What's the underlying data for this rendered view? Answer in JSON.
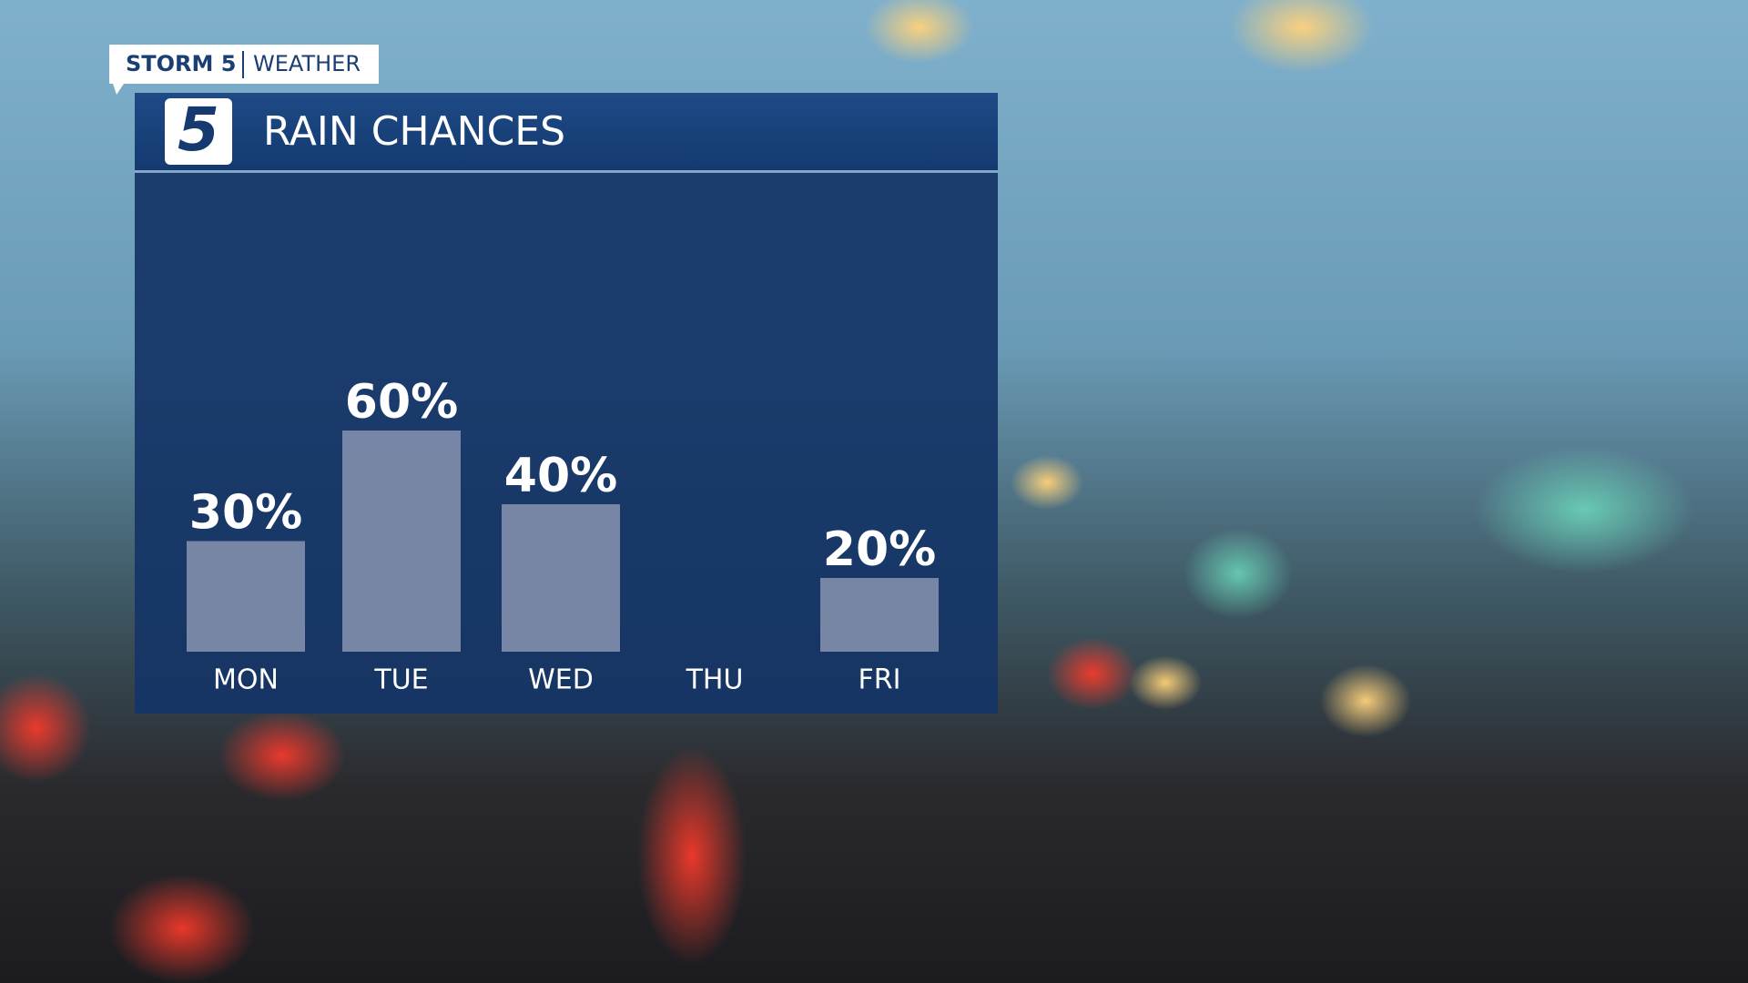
{
  "header": {
    "brand": "STORM 5",
    "section": "WEATHER",
    "logo": "5"
  },
  "chart_data": {
    "type": "bar",
    "title": "RAIN CHANCES",
    "categories": [
      "MON",
      "TUE",
      "WED",
      "THU",
      "FRI"
    ],
    "values": [
      30,
      60,
      40,
      null,
      20
    ],
    "value_labels": [
      "30%",
      "60%",
      "40%",
      null,
      "20%"
    ],
    "color": "#8894b0"
  }
}
